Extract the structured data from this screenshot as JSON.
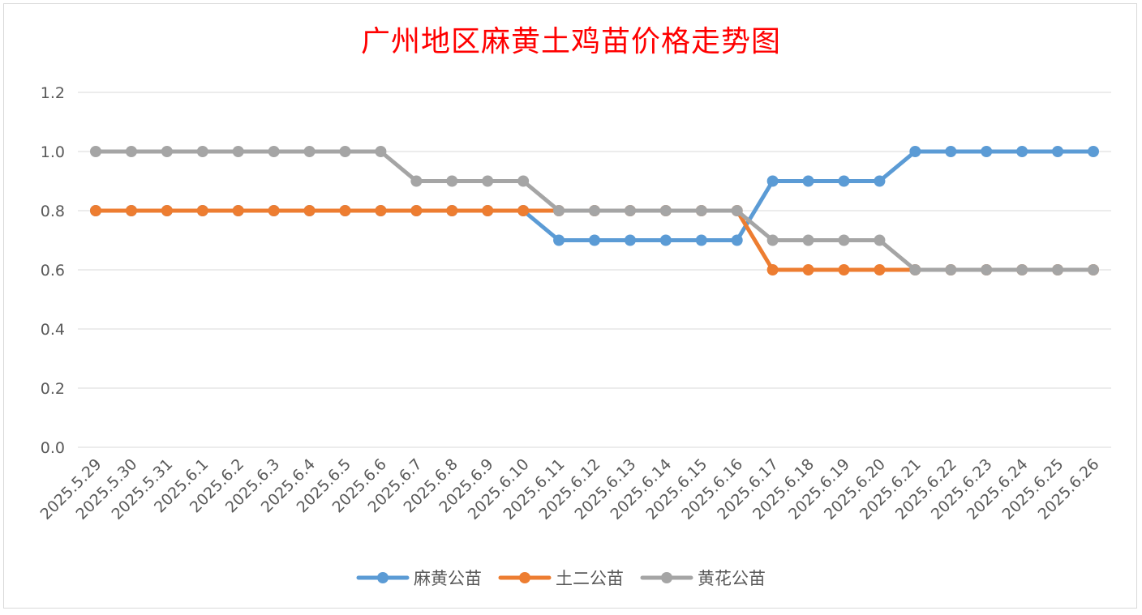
{
  "chart_data": {
    "type": "line",
    "title": "广州地区麻黄土鸡苗价格走势图",
    "xlabel": "",
    "ylabel": "",
    "ylim": [
      0,
      1.2
    ],
    "yticks": [
      "0.0",
      "0.2",
      "0.4",
      "0.6",
      "0.8",
      "1.0",
      "1.2"
    ],
    "grid": true,
    "legend_position": "bottom",
    "categories": [
      "2025.5.29",
      "2025.5.30",
      "2025.5.31",
      "2025.6.1",
      "2025.6.2",
      "2025.6.3",
      "2025.6.4",
      "2025.6.5",
      "2025.6.6",
      "2025.6.7",
      "2025.6.8",
      "2025.6.9",
      "2025.6.10",
      "2025.6.11",
      "2025.6.12",
      "2025.6.13",
      "2025.6.14",
      "2025.6.15",
      "2025.6.16",
      "2025.6.17",
      "2025.6.18",
      "2025.6.19",
      "2025.6.20",
      "2025.6.21",
      "2025.6.22",
      "2025.6.23",
      "2025.6.24",
      "2025.6.25",
      "2025.6.26"
    ],
    "series": [
      {
        "name": "麻黄公苗",
        "color": "#5b9bd5",
        "values": [
          0.8,
          0.8,
          0.8,
          0.8,
          0.8,
          0.8,
          0.8,
          0.8,
          0.8,
          0.8,
          0.8,
          0.8,
          0.8,
          0.7,
          0.7,
          0.7,
          0.7,
          0.7,
          0.7,
          0.9,
          0.9,
          0.9,
          0.9,
          1.0,
          1.0,
          1.0,
          1.0,
          1.0,
          1.0
        ]
      },
      {
        "name": "土二公苗",
        "color": "#ed7d31",
        "values": [
          0.8,
          0.8,
          0.8,
          0.8,
          0.8,
          0.8,
          0.8,
          0.8,
          0.8,
          0.8,
          0.8,
          0.8,
          0.8,
          0.8,
          0.8,
          0.8,
          0.8,
          0.8,
          0.8,
          0.6,
          0.6,
          0.6,
          0.6,
          0.6,
          0.6,
          0.6,
          0.6,
          0.6,
          0.6
        ]
      },
      {
        "name": "黄花公苗",
        "color": "#a5a5a5",
        "values": [
          1.0,
          1.0,
          1.0,
          1.0,
          1.0,
          1.0,
          1.0,
          1.0,
          1.0,
          0.9,
          0.9,
          0.9,
          0.9,
          0.8,
          0.8,
          0.8,
          0.8,
          0.8,
          0.8,
          0.7,
          0.7,
          0.7,
          0.7,
          0.6,
          0.6,
          0.6,
          0.6,
          0.6,
          0.6
        ]
      }
    ]
  }
}
